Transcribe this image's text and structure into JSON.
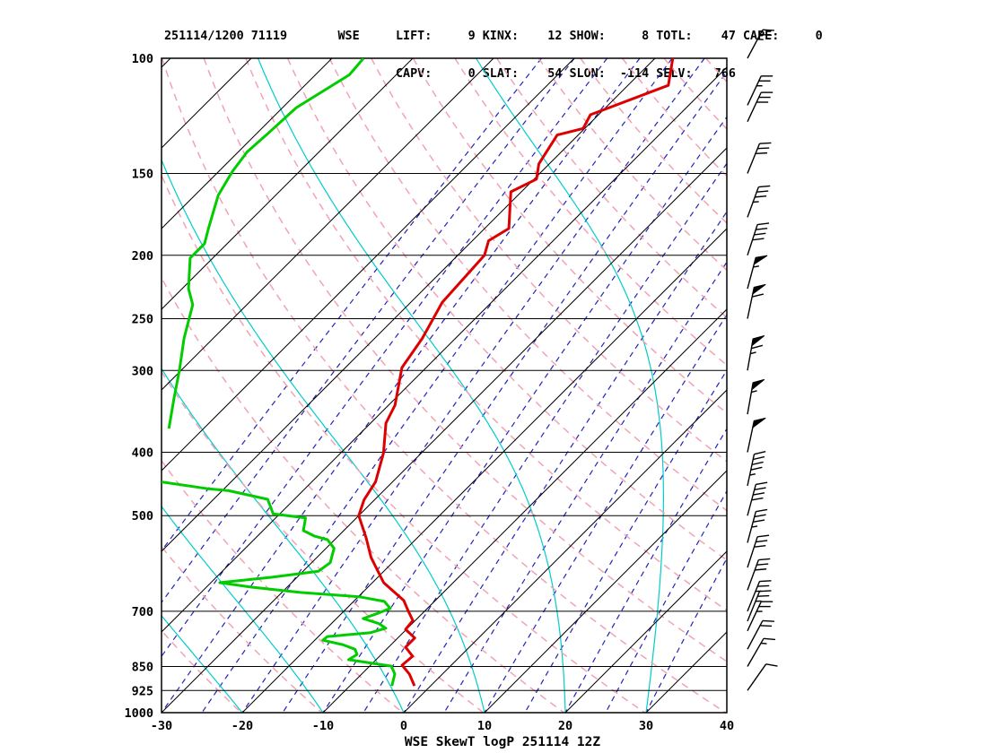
{
  "header": {
    "line1": "251114/1200 71119       WSE     LIFT:     9 KINX:    12 SHOW:     8 TOTL:    47 CAPE:     0",
    "line2": "                                CAPV:     0 SLAT:    54 SLON:  -114 SELV:   766",
    "datetime": "251114/1200",
    "station": "71119",
    "source": "WSE",
    "indices": {
      "LIFT": 9,
      "KINX": 12,
      "SHOW": 8,
      "TOTL": 47,
      "CAPE": 0,
      "CAPV": 0,
      "SLAT": 54,
      "SLON": -114,
      "SELV": 766
    }
  },
  "footer": {
    "label": "WSE SkewT logP 251114 12Z"
  },
  "chart_data": {
    "type": "skewt",
    "title": "WSE SkewT logP 251114 12Z",
    "pressure_range": [
      100,
      1000
    ],
    "pressure_ticks": [
      100,
      150,
      200,
      250,
      300,
      400,
      500,
      700,
      850,
      925,
      1000
    ],
    "temp_axis": [
      -30,
      40
    ],
    "temp_ticks": [
      -30,
      -20,
      -10,
      0,
      10,
      20,
      30,
      40
    ],
    "isotherms_c": [
      -110,
      40,
      10
    ],
    "dry_adiabats_k": [
      243,
      453,
      10
    ],
    "moist_adiabats_c": [
      -30,
      -20,
      -10,
      0,
      10,
      20,
      30
    ],
    "mixing_ratio_dewpoints_at_1000": [
      -45,
      -40,
      -35,
      -30,
      -25,
      -20,
      -15,
      -10,
      -5,
      0,
      5,
      10,
      15,
      20,
      25,
      30
    ],
    "colors": {
      "temperature": "#dd0000",
      "dewpoint": "#00cc00",
      "isotherm": "#000000",
      "dry_adiabat": "#f2a3b3",
      "moist_adiabat": "#00cccc",
      "mixing_ratio": "#2222bb",
      "grid": "#000000",
      "wind": "#000000",
      "background": "#ffffff"
    },
    "temperature_profile": [
      [
        100,
        -47.8
      ],
      [
        110,
        -45.0
      ],
      [
        122,
        -51.0
      ],
      [
        128,
        -50.2
      ],
      [
        131,
        -52.6
      ],
      [
        145,
        -51.3
      ],
      [
        153,
        -49.7
      ],
      [
        160,
        -51.3
      ],
      [
        182,
        -47.0
      ],
      [
        190,
        -48.0
      ],
      [
        200,
        -46.7
      ],
      [
        236,
        -46.1
      ],
      [
        268,
        -44.1
      ],
      [
        297,
        -43.0
      ],
      [
        339,
        -39.2
      ],
      [
        361,
        -38.1
      ],
      [
        401,
        -34.7
      ],
      [
        444,
        -32.1
      ],
      [
        473,
        -31.3
      ],
      [
        500,
        -30.0
      ],
      [
        541,
        -26.3
      ],
      [
        579,
        -23.3
      ],
      [
        633,
        -18.6
      ],
      [
        674,
        -13.9
      ],
      [
        700,
        -12.0
      ],
      [
        723,
        -10.3
      ],
      [
        746,
        -10.1
      ],
      [
        769,
        -7.9
      ],
      [
        794,
        -7.9
      ],
      [
        820,
        -5.9
      ],
      [
        846,
        -6.1
      ],
      [
        873,
        -4.1
      ],
      [
        910,
        -2.0
      ]
    ],
    "dewpoint_profile_upper": [
      [
        100,
        -86.1
      ],
      [
        106,
        -85.8
      ],
      [
        119,
        -88.3
      ],
      [
        130,
        -88.6
      ],
      [
        139,
        -88.9
      ],
      [
        149,
        -88.3
      ],
      [
        162,
        -87.1
      ],
      [
        182,
        -84.2
      ],
      [
        192,
        -82.8
      ],
      [
        202,
        -82.8
      ],
      [
        225,
        -79.2
      ],
      [
        238,
        -76.7
      ],
      [
        268,
        -73.6
      ],
      [
        299,
        -70.3
      ],
      [
        331,
        -67.4
      ],
      [
        368,
        -64.3
      ]
    ],
    "dewpoint_profile_lower": [
      [
        444,
        -58.6
      ],
      [
        455,
        -51.9
      ],
      [
        458,
        -49.2
      ],
      [
        472,
        -43.3
      ],
      [
        497,
        -40.8
      ],
      [
        504,
        -36.3
      ],
      [
        527,
        -35.0
      ],
      [
        537,
        -33.0
      ],
      [
        544,
        -30.9
      ],
      [
        561,
        -29.0
      ],
      [
        590,
        -27.7
      ],
      [
        608,
        -28.1
      ],
      [
        621,
        -33.2
      ],
      [
        633,
        -38.9
      ],
      [
        643,
        -34.4
      ],
      [
        655,
        -27.7
      ],
      [
        665,
        -19.9
      ],
      [
        676,
        -16.2
      ],
      [
        693,
        -14.6
      ],
      [
        706,
        -15.6
      ],
      [
        718,
        -16.7
      ],
      [
        731,
        -14.1
      ],
      [
        743,
        -12.7
      ],
      [
        755,
        -14.1
      ],
      [
        765,
        -18.9
      ],
      [
        775,
        -19.0
      ],
      [
        787,
        -16.0
      ],
      [
        800,
        -13.9
      ],
      [
        815,
        -13.0
      ],
      [
        830,
        -13.4
      ],
      [
        849,
        -7.3
      ],
      [
        873,
        -5.9
      ],
      [
        910,
        -4.8
      ]
    ],
    "wind_barbs": [
      {
        "p": 925,
        "spd": 10,
        "dir": 35
      },
      {
        "p": 850,
        "spd": 15,
        "dir": 30
      },
      {
        "p": 800,
        "spd": 20,
        "dir": 28
      },
      {
        "p": 750,
        "spd": 25,
        "dir": 25
      },
      {
        "p": 725,
        "spd": 25,
        "dir": 22
      },
      {
        "p": 700,
        "spd": 25,
        "dir": 22
      },
      {
        "p": 650,
        "spd": 30,
        "dir": 20
      },
      {
        "p": 600,
        "spd": 30,
        "dir": 18
      },
      {
        "p": 550,
        "spd": 35,
        "dir": 15
      },
      {
        "p": 500,
        "spd": 40,
        "dir": 15
      },
      {
        "p": 450,
        "spd": 45,
        "dir": 12
      },
      {
        "p": 400,
        "spd": 50,
        "dir": 12
      },
      {
        "p": 350,
        "spd": 55,
        "dir": 10
      },
      {
        "p": 300,
        "spd": 65,
        "dir": 10
      },
      {
        "p": 250,
        "spd": 60,
        "dir": 12
      },
      {
        "p": 225,
        "spd": 55,
        "dir": 15
      },
      {
        "p": 200,
        "spd": 40,
        "dir": 18
      },
      {
        "p": 175,
        "spd": 35,
        "dir": 20
      },
      {
        "p": 150,
        "spd": 30,
        "dir": 22
      },
      {
        "p": 125,
        "spd": 30,
        "dir": 25
      },
      {
        "p": 118,
        "spd": 25,
        "dir": 25
      },
      {
        "p": 100,
        "spd": 25,
        "dir": 28
      }
    ]
  }
}
